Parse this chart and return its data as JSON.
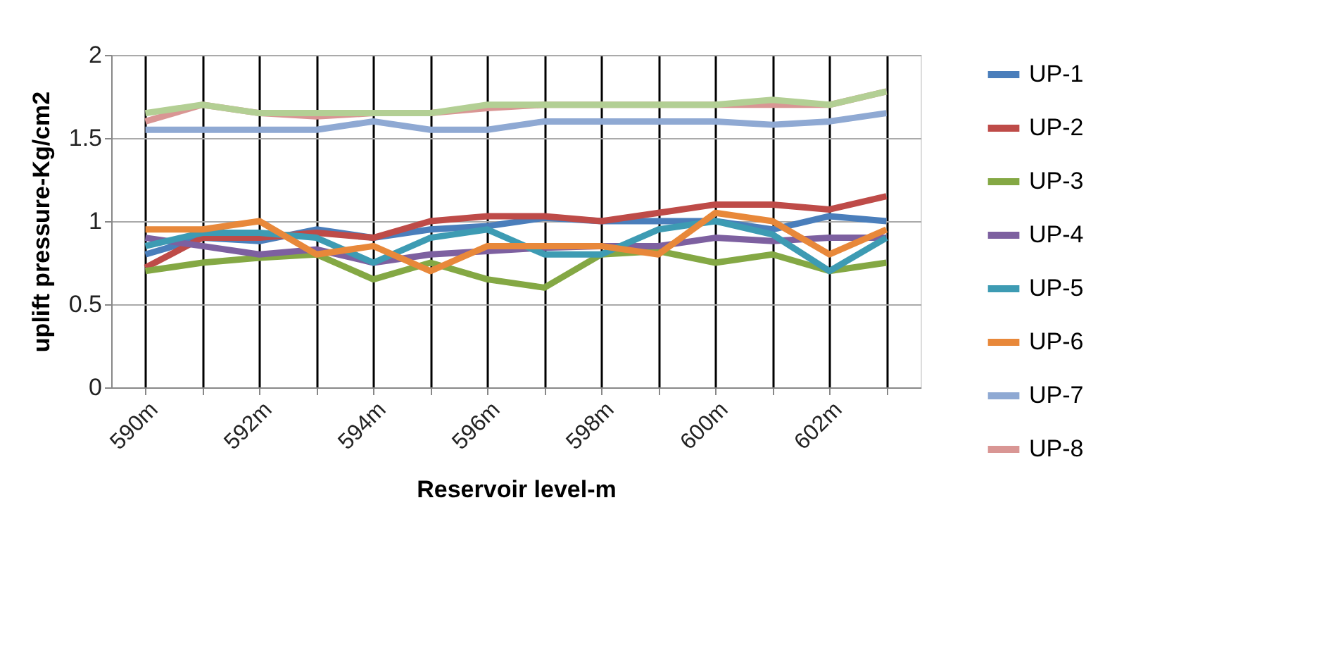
{
  "chart_data": {
    "type": "line",
    "xlabel": "Reservoir level-m",
    "ylabel": "uplift pressure-Kg/cm2",
    "categories": [
      "590m",
      null,
      "592m",
      null,
      "594m",
      null,
      "596m",
      null,
      "598m",
      null,
      "600m",
      null,
      "602m",
      null
    ],
    "ylim": [
      0,
      2
    ],
    "yticks": [
      0,
      0.5,
      1,
      1.5,
      2
    ],
    "grid": true,
    "legend": "right",
    "line_style": "solid",
    "marker": "none",
    "series": [
      {
        "name": "UP-1",
        "color": "#4a7ebb",
        "values": [
          0.8,
          0.9,
          0.88,
          0.95,
          0.9,
          0.95,
          0.97,
          1.02,
          1.0,
          1.0,
          1.0,
          0.95,
          1.03,
          1.0
        ]
      },
      {
        "name": "UP-2",
        "color": "#be4b48",
        "values": [
          0.72,
          0.9,
          0.9,
          0.93,
          0.9,
          1.0,
          1.03,
          1.03,
          1.0,
          1.05,
          1.1,
          1.1,
          1.07,
          1.15
        ]
      },
      {
        "name": "UP-3",
        "color": "#84a844",
        "values": [
          0.7,
          0.75,
          0.78,
          0.8,
          0.65,
          0.75,
          0.65,
          0.6,
          0.8,
          0.82,
          0.75,
          0.8,
          0.7,
          0.75
        ]
      },
      {
        "name": "UP-4",
        "color": "#7d60a0",
        "values": [
          0.9,
          0.85,
          0.8,
          0.83,
          0.75,
          0.8,
          0.82,
          0.84,
          0.85,
          0.85,
          0.9,
          0.88,
          0.9,
          0.9
        ]
      },
      {
        "name": "UP-5",
        "color": "#3d9bb3",
        "values": [
          0.85,
          0.93,
          0.93,
          0.9,
          0.75,
          0.9,
          0.95,
          0.8,
          0.8,
          0.95,
          1.0,
          0.92,
          0.7,
          0.9
        ]
      },
      {
        "name": "UP-6",
        "color": "#e8883a",
        "values": [
          0.95,
          0.95,
          1.0,
          0.8,
          0.85,
          0.7,
          0.85,
          0.85,
          0.85,
          0.8,
          1.05,
          1.0,
          0.8,
          0.95
        ]
      },
      {
        "name": "UP-7",
        "color": "#8fa9d3",
        "values": [
          1.55,
          1.55,
          1.55,
          1.55,
          1.6,
          1.55,
          1.55,
          1.6,
          1.6,
          1.6,
          1.6,
          1.58,
          1.6,
          1.65
        ]
      },
      {
        "name": "UP-8",
        "color": "#d99694",
        "values": [
          1.6,
          1.7,
          1.65,
          1.63,
          1.65,
          1.65,
          1.68,
          1.7,
          1.7,
          1.7,
          1.7,
          1.7,
          1.7,
          1.78
        ]
      },
      {
        "color": "#b3cf94",
        "values": [
          1.65,
          1.7,
          1.65,
          1.65,
          1.65,
          1.65,
          1.7,
          1.7,
          1.7,
          1.7,
          1.7,
          1.73,
          1.7,
          1.78
        ]
      }
    ]
  }
}
